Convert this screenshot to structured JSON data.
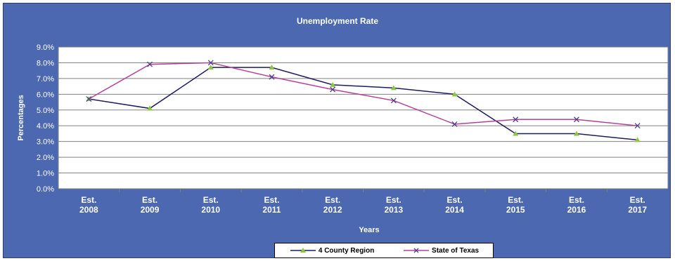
{
  "chart_data": {
    "type": "line",
    "title": "Unemployment Rate",
    "xlabel": "Years",
    "ylabel": "Percentages",
    "categories": [
      [
        "Est.",
        "2008"
      ],
      [
        "Est.",
        "2009"
      ],
      [
        "Est.",
        "2010"
      ],
      [
        "Est.",
        "2011"
      ],
      [
        "Est.",
        "2012"
      ],
      [
        "Est.",
        "2013"
      ],
      [
        "Est.",
        "2014"
      ],
      [
        "Est.",
        "2015"
      ],
      [
        "Est.",
        "2016"
      ],
      [
        "Est.",
        "2017"
      ]
    ],
    "ylim": [
      0,
      9
    ],
    "yticks": [
      "0.0%",
      "1.0%",
      "2.0%",
      "3.0%",
      "4.0%",
      "5.0%",
      "6.0%",
      "7.0%",
      "8.0%",
      "9.0%"
    ],
    "grid": true,
    "legend_position": "bottom",
    "series": [
      {
        "name": "4 County Region",
        "values": [
          5.7,
          5.1,
          7.7,
          7.7,
          6.6,
          6.4,
          6.0,
          3.5,
          3.5,
          3.1
        ],
        "color": "#1c1c5e",
        "marker": "triangle",
        "marker_color": "#8dc63f"
      },
      {
        "name": "State of Texas",
        "values": [
          5.7,
          7.9,
          8.0,
          7.1,
          6.3,
          5.6,
          4.1,
          4.4,
          4.4,
          4.0
        ],
        "color": "#b5409a",
        "marker": "x",
        "marker_color": "#4a3f8c"
      }
    ]
  },
  "colors": {
    "frame_background": "#4b68b0",
    "plot_background": "#ffffff",
    "gridline": "#808080"
  }
}
